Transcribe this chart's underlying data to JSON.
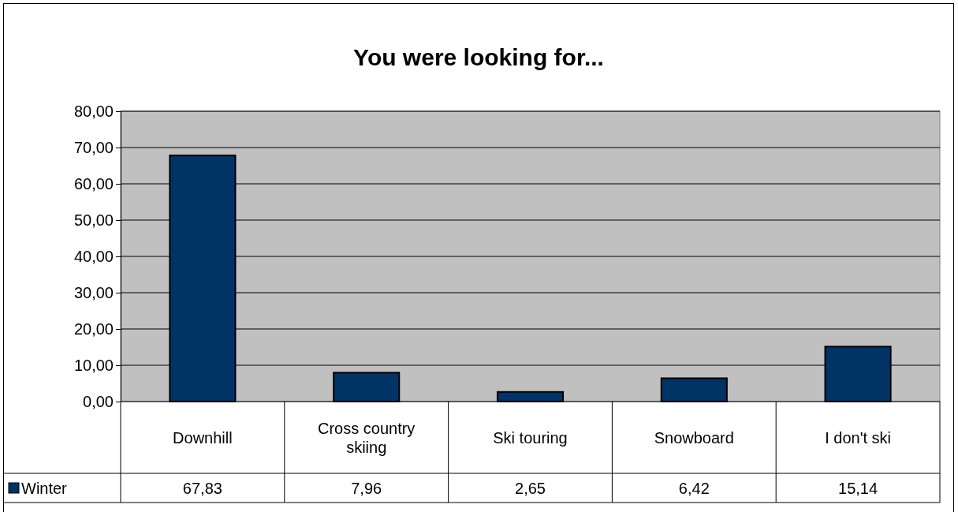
{
  "chart_data": {
    "type": "bar",
    "title": "You were looking for...",
    "categories": [
      "Downhill",
      "Cross country skiing",
      "Ski touring",
      "Snowboard",
      "I don't ski"
    ],
    "series": [
      {
        "name": "Winter",
        "color": "#003366",
        "values": [
          67.83,
          7.96,
          2.65,
          6.42,
          15.14
        ],
        "value_labels": [
          "67,83",
          "7,96",
          "2,65",
          "6,42",
          "15,14"
        ]
      }
    ],
    "ylim": [
      0,
      80
    ],
    "yticks": [
      {
        "value": 0,
        "label": "0,00"
      },
      {
        "value": 10,
        "label": "10,00"
      },
      {
        "value": 20,
        "label": "20,00"
      },
      {
        "value": 30,
        "label": "30,00"
      },
      {
        "value": 40,
        "label": "40,00"
      },
      {
        "value": 50,
        "label": "50,00"
      },
      {
        "value": 60,
        "label": "60,00"
      },
      {
        "value": 70,
        "label": "70,00"
      },
      {
        "value": 80,
        "label": "80,00"
      }
    ],
    "grid": "y",
    "legend": "bottom"
  }
}
